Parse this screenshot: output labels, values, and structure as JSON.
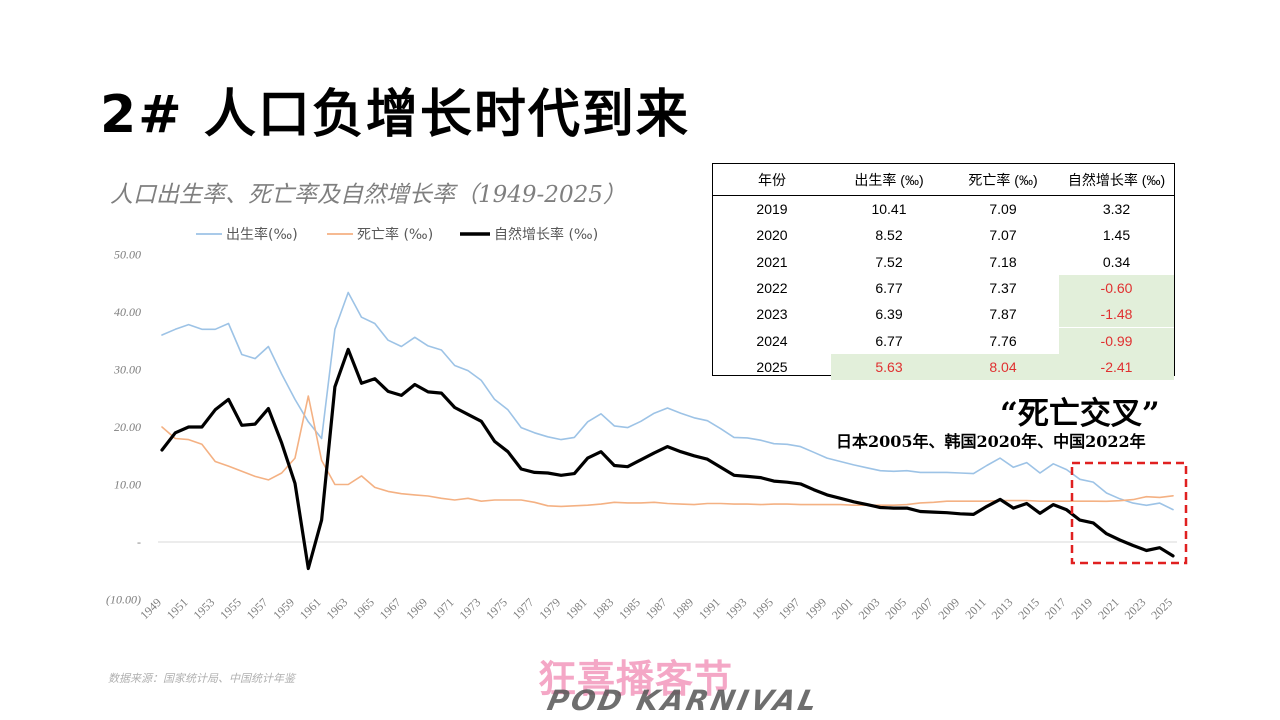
{
  "slide": {
    "title": "2# 人口负增长时代到来",
    "source": "数据来源：国家统计局、中国统计年鉴",
    "logo_text": "狂喜播客节",
    "logo_subtext": "POD KARNIVAL"
  },
  "annotation": {
    "title": "“死亡交叉”",
    "subtitle": "日本2005年、韩国2020年、中国2022年"
  },
  "colors": {
    "birth": "#9dc3e6",
    "death": "#f4b183",
    "natural": "#000000",
    "negative_text": "#e03030",
    "highlight_cell": "#e2efda",
    "box_dash": "#e02020"
  },
  "table": {
    "headers": [
      "年份",
      "出生率 (‰)",
      "死亡率 (‰)",
      "自然增长率 (‰)"
    ],
    "rows": [
      {
        "year": "2019",
        "birth": "10.41",
        "death": "7.09",
        "natural": "3.32"
      },
      {
        "year": "2020",
        "birth": "8.52",
        "death": "7.07",
        "natural": "1.45"
      },
      {
        "year": "2021",
        "birth": "7.52",
        "death": "7.18",
        "natural": "0.34"
      },
      {
        "year": "2022",
        "birth": "6.77",
        "death": "7.37",
        "natural": "-0.60"
      },
      {
        "year": "2023",
        "birth": "6.39",
        "death": "7.87",
        "natural": "-1.48"
      },
      {
        "year": "2024",
        "birth": "6.77",
        "death": "7.76",
        "natural": "-0.99"
      },
      {
        "year": "2025",
        "birth": "5.63",
        "death": "8.04",
        "natural": "-2.41"
      }
    ]
  },
  "chart_data": {
    "type": "line",
    "title": "人口出生率、死亡率及自然增长率（1949-2025）",
    "ylim": [
      -10,
      50
    ],
    "y_ticks": [
      {
        "value": 50,
        "label": "50.00"
      },
      {
        "value": 40,
        "label": "40.00"
      },
      {
        "value": 30,
        "label": "30.00"
      },
      {
        "value": 20,
        "label": "20.00"
      },
      {
        "value": 10,
        "label": "10.00"
      },
      {
        "value": 0,
        "label": "-"
      },
      {
        "value": -10,
        "label": "(10.00)"
      }
    ],
    "grid": false,
    "legend_position": "top",
    "x_tick_labels": [
      "1949",
      "1951",
      "1953",
      "1955",
      "1957",
      "1959",
      "1961",
      "1963",
      "1965",
      "1967",
      "1969",
      "1971",
      "1973",
      "1975",
      "1977",
      "1979",
      "1981",
      "1983",
      "1985",
      "1987",
      "1989",
      "1991",
      "1993",
      "1995",
      "1997",
      "1999",
      "2001",
      "2003",
      "2005",
      "2007",
      "2009",
      "2011",
      "2013",
      "2015",
      "2017",
      "2019",
      "2021",
      "2023",
      "2025"
    ],
    "x": [
      1949,
      1950,
      1951,
      1952,
      1953,
      1954,
      1955,
      1956,
      1957,
      1958,
      1959,
      1960,
      1961,
      1962,
      1963,
      1964,
      1965,
      1966,
      1967,
      1968,
      1969,
      1970,
      1971,
      1972,
      1973,
      1974,
      1975,
      1976,
      1977,
      1978,
      1979,
      1980,
      1981,
      1982,
      1983,
      1984,
      1985,
      1986,
      1987,
      1988,
      1989,
      1990,
      1991,
      1992,
      1993,
      1994,
      1995,
      1996,
      1997,
      1998,
      1999,
      2000,
      2001,
      2002,
      2003,
      2004,
      2005,
      2006,
      2007,
      2008,
      2009,
      2010,
      2011,
      2012,
      2013,
      2014,
      2015,
      2016,
      2017,
      2018,
      2019,
      2020,
      2021,
      2022,
      2023,
      2024,
      2025
    ],
    "series": [
      {
        "name": "出生率(‰)",
        "key": "birth",
        "stroke_width": 1.6,
        "values": [
          36.0,
          37.0,
          37.8,
          37.0,
          37.0,
          38.0,
          32.6,
          31.9,
          34.0,
          29.2,
          24.8,
          20.9,
          18.0,
          37.0,
          43.4,
          39.1,
          38.0,
          35.1,
          34.0,
          35.6,
          34.1,
          33.4,
          30.7,
          29.8,
          28.1,
          24.8,
          23.0,
          19.9,
          19.0,
          18.3,
          17.8,
          18.2,
          20.9,
          22.3,
          20.2,
          19.9,
          21.0,
          22.4,
          23.3,
          22.4,
          21.6,
          21.1,
          19.7,
          18.2,
          18.1,
          17.7,
          17.1,
          17.0,
          16.6,
          15.6,
          14.6,
          14.0,
          13.4,
          12.9,
          12.4,
          12.3,
          12.4,
          12.1,
          12.1,
          12.1,
          12.0,
          11.9,
          13.3,
          14.6,
          13.0,
          13.8,
          12.0,
          13.6,
          12.6,
          10.9,
          10.41,
          8.52,
          7.52,
          6.77,
          6.39,
          6.77,
          5.63
        ]
      },
      {
        "name": "死亡率 (‰)",
        "key": "death",
        "stroke_width": 1.6,
        "values": [
          20.0,
          18.0,
          17.8,
          17.0,
          14.0,
          13.2,
          12.3,
          11.4,
          10.8,
          12.0,
          14.6,
          25.4,
          14.2,
          10.0,
          10.0,
          11.5,
          9.5,
          8.8,
          8.4,
          8.2,
          8.0,
          7.6,
          7.3,
          7.6,
          7.1,
          7.3,
          7.3,
          7.3,
          6.9,
          6.3,
          6.2,
          6.3,
          6.4,
          6.6,
          6.9,
          6.8,
          6.8,
          6.9,
          6.7,
          6.6,
          6.5,
          6.7,
          6.7,
          6.6,
          6.6,
          6.5,
          6.6,
          6.6,
          6.5,
          6.5,
          6.5,
          6.5,
          6.4,
          6.4,
          6.4,
          6.4,
          6.5,
          6.8,
          6.9,
          7.1,
          7.1,
          7.1,
          7.1,
          7.2,
          7.2,
          7.2,
          7.1,
          7.1,
          7.1,
          7.1,
          7.09,
          7.07,
          7.18,
          7.37,
          7.87,
          7.76,
          8.04
        ]
      },
      {
        "name": "自然增长率 (‰)",
        "key": "natural",
        "stroke_width": 3.2,
        "values": [
          16.0,
          19.0,
          20.0,
          20.0,
          23.0,
          24.8,
          20.3,
          20.5,
          23.2,
          17.2,
          10.2,
          -4.6,
          3.8,
          27.0,
          33.5,
          27.6,
          28.4,
          26.2,
          25.5,
          27.4,
          26.1,
          25.9,
          23.4,
          22.2,
          21.0,
          17.5,
          15.7,
          12.7,
          12.1,
          12.0,
          11.6,
          11.9,
          14.6,
          15.7,
          13.3,
          13.1,
          14.3,
          15.5,
          16.6,
          15.7,
          15.0,
          14.4,
          13.0,
          11.6,
          11.4,
          11.2,
          10.6,
          10.4,
          10.1,
          9.1,
          8.2,
          7.6,
          7.0,
          6.5,
          6.0,
          5.9,
          5.9,
          5.3,
          5.2,
          5.1,
          4.9,
          4.8,
          6.2,
          7.4,
          5.9,
          6.7,
          5.0,
          6.5,
          5.6,
          3.8,
          3.32,
          1.45,
          0.34,
          -0.6,
          -1.48,
          -0.99,
          -2.41
        ]
      }
    ]
  }
}
